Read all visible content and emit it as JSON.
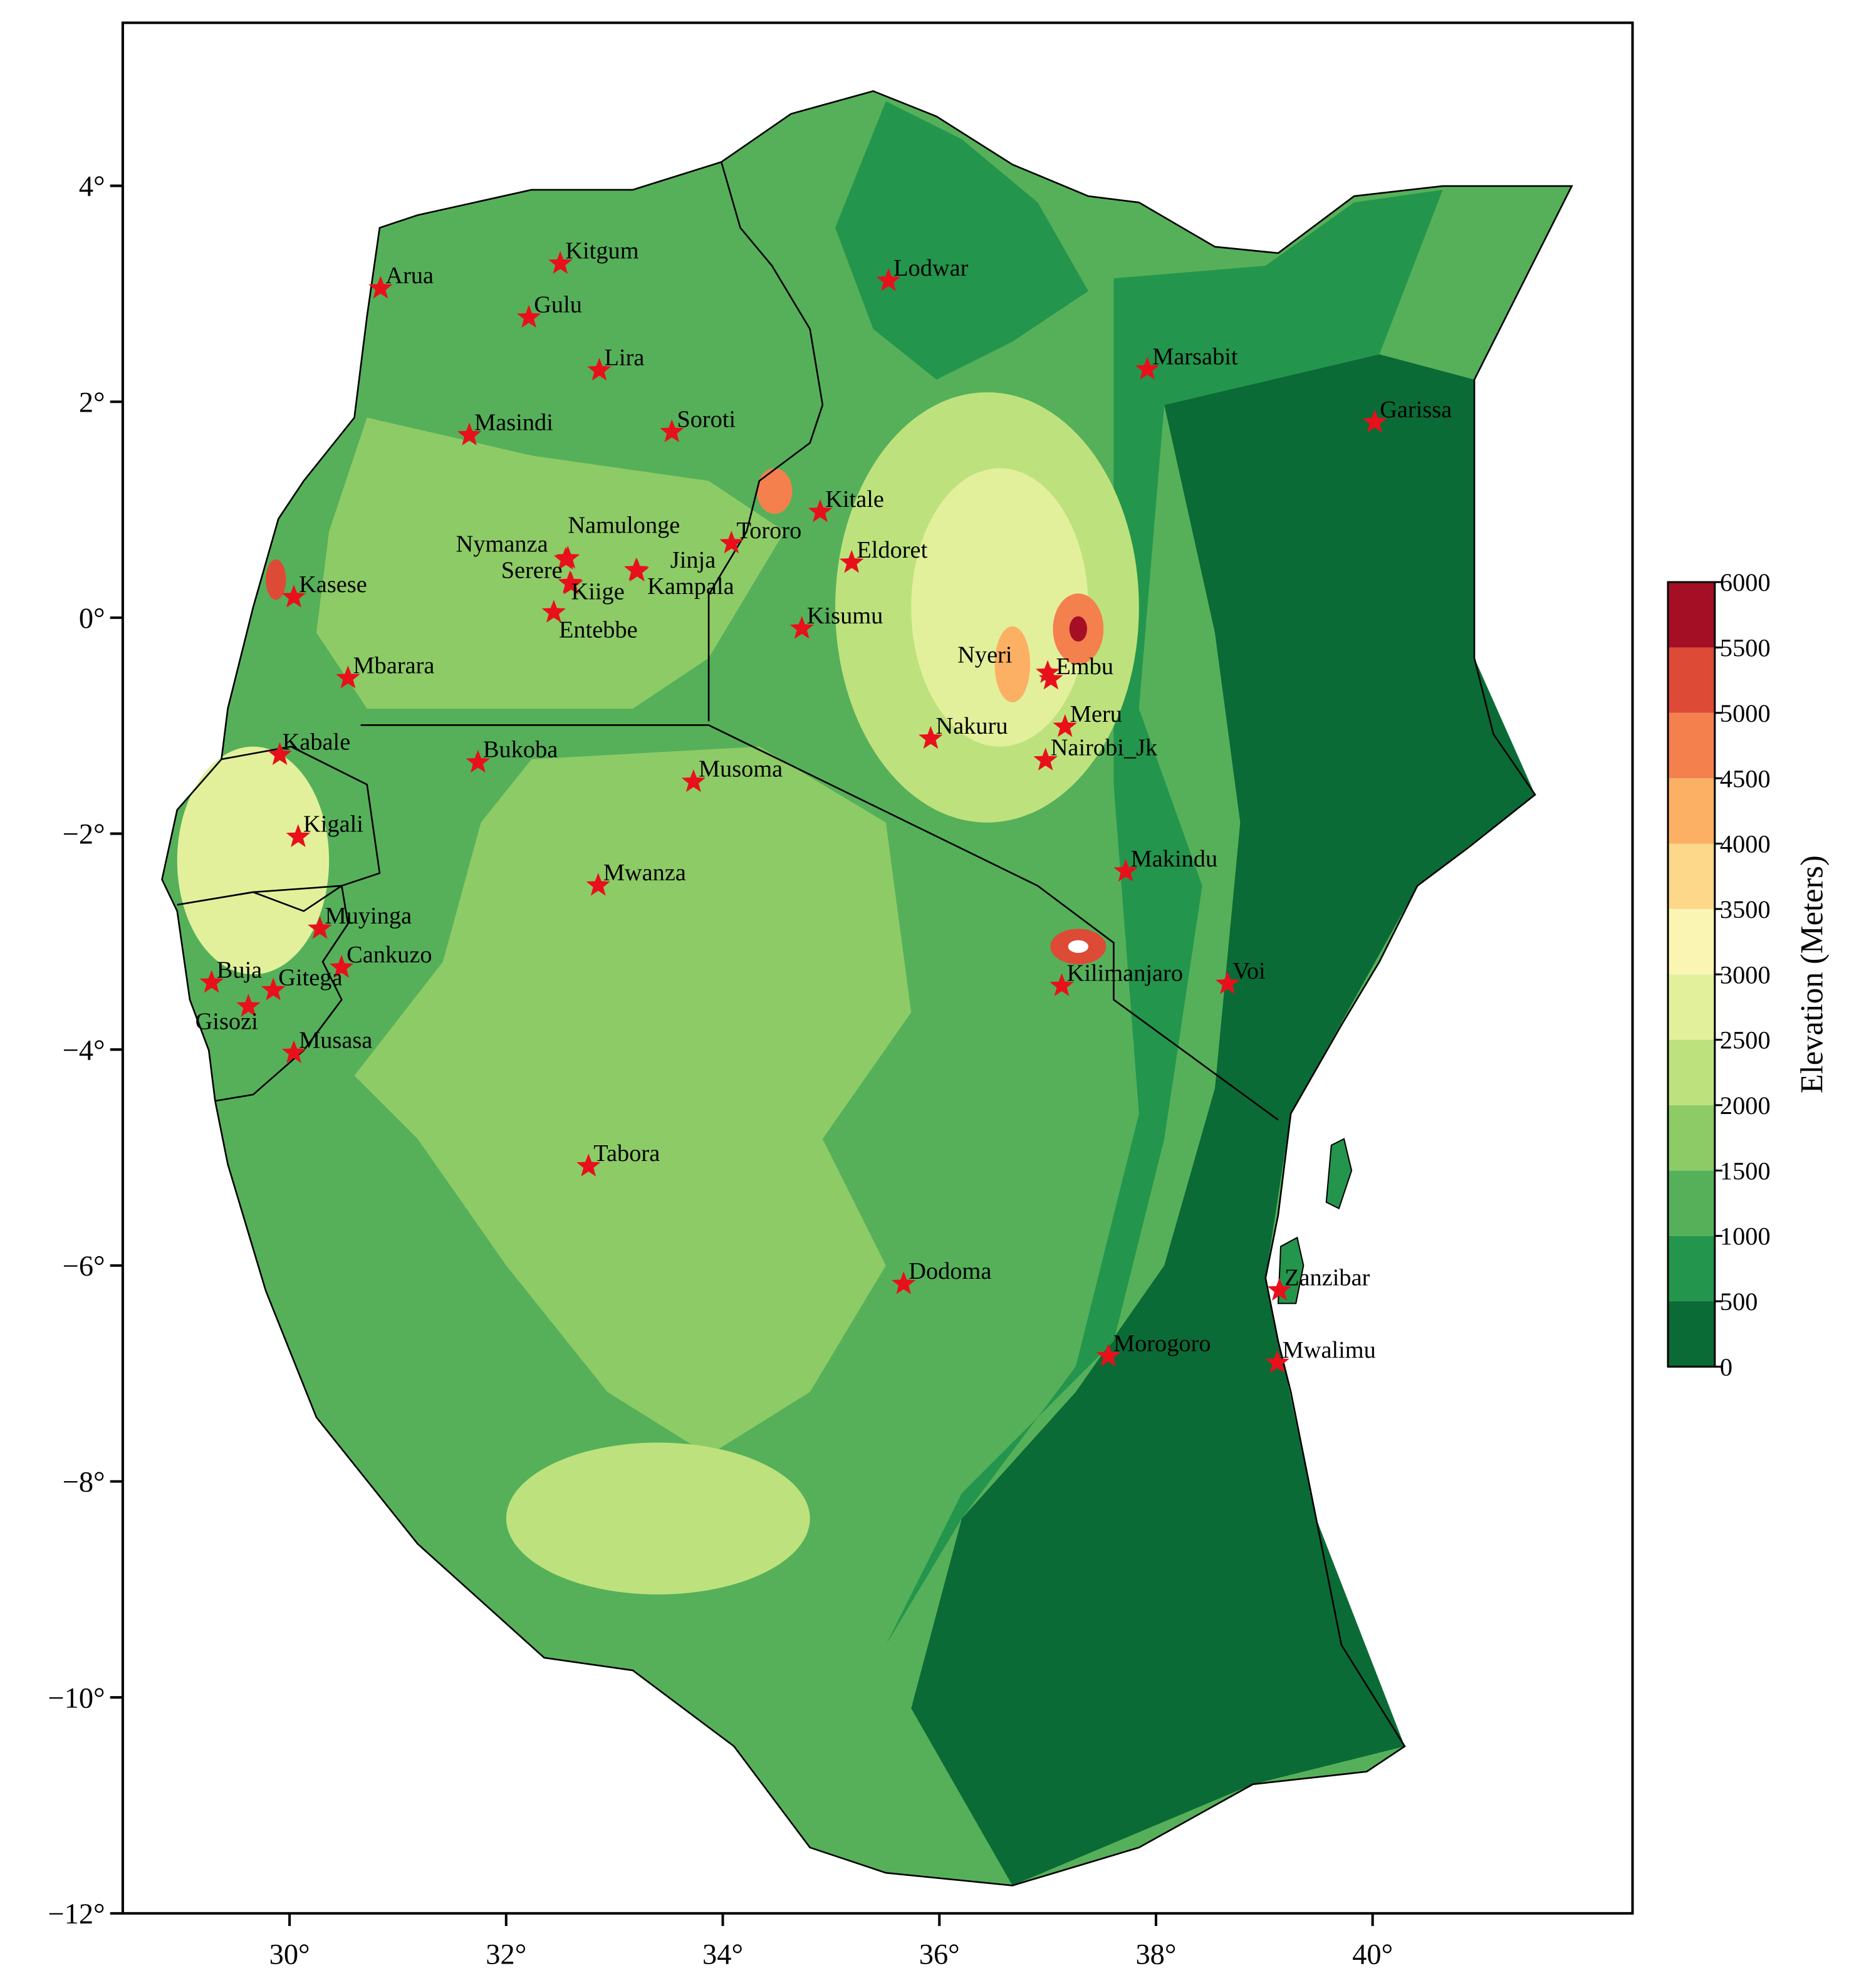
{
  "chart_data": {
    "type": "map",
    "xlim": [
      28.46,
      42.4
    ],
    "ylim": [
      -12,
      5.51
    ],
    "xticks": [
      {
        "value": 30,
        "label": "30°"
      },
      {
        "value": 32,
        "label": "32°"
      },
      {
        "value": 34,
        "label": "34°"
      },
      {
        "value": 36,
        "label": "36°"
      },
      {
        "value": 38,
        "label": "38°"
      },
      {
        "value": 40,
        "label": "40°"
      }
    ],
    "yticks": [
      {
        "value": 4,
        "label": "4°"
      },
      {
        "value": 2,
        "label": "2°"
      },
      {
        "value": 0,
        "label": "0°"
      },
      {
        "value": -2,
        "label": "−2°"
      },
      {
        "value": -4,
        "label": "−4°"
      },
      {
        "value": -6,
        "label": "−6°"
      },
      {
        "value": -8,
        "label": "−8°"
      },
      {
        "value": -10,
        "label": "−10°"
      },
      {
        "value": -12,
        "label": "−12°"
      }
    ],
    "marker_color": "#e8101a",
    "cities": [
      {
        "name": "Arua",
        "lon": 30.84,
        "lat": 3.05
      },
      {
        "name": "Kitgum",
        "lon": 32.5,
        "lat": 3.28
      },
      {
        "name": "Gulu",
        "lon": 32.21,
        "lat": 2.78
      },
      {
        "name": "Lira",
        "lon": 32.86,
        "lat": 2.29
      },
      {
        "name": "Lodwar",
        "lon": 35.53,
        "lat": 3.12
      },
      {
        "name": "Marsabit",
        "lon": 37.92,
        "lat": 2.3
      },
      {
        "name": "Garissa",
        "lon": 40.02,
        "lat": 1.81
      },
      {
        "name": "Masindi",
        "lon": 31.66,
        "lat": 1.69
      },
      {
        "name": "Soroti",
        "lon": 33.53,
        "lat": 1.72
      },
      {
        "name": "Kitale",
        "lon": 34.9,
        "lat": 0.98
      },
      {
        "name": "Tororo",
        "lon": 34.08,
        "lat": 0.69
      },
      {
        "name": "Namulonge",
        "lon": 32.57,
        "lat": 0.55
      },
      {
        "name": "Nymanza",
        "lon": 32.55,
        "lat": 0.54
      },
      {
        "name": "Serere",
        "lon": 32.59,
        "lat": 0.32
      },
      {
        "name": "Kiige",
        "lon": 32.6,
        "lat": 0.31
      },
      {
        "name": "Jinja",
        "lon": 33.2,
        "lat": 0.44
      },
      {
        "name": "Kampala",
        "lon": 33.21,
        "lat": 0.43
      },
      {
        "name": "Entebbe",
        "lon": 32.44,
        "lat": 0.05
      },
      {
        "name": "Eldoret",
        "lon": 35.19,
        "lat": 0.51
      },
      {
        "name": "Kasese",
        "lon": 30.04,
        "lat": 0.19
      },
      {
        "name": "Kisumu",
        "lon": 34.73,
        "lat": -0.1
      },
      {
        "name": "Mbarara",
        "lon": 30.54,
        "lat": -0.56
      },
      {
        "name": "Nyeri",
        "lon": 37.0,
        "lat": -0.51
      },
      {
        "name": "Embu",
        "lon": 37.03,
        "lat": -0.57
      },
      {
        "name": "Meru",
        "lon": 37.16,
        "lat": -1.01
      },
      {
        "name": "Nakuru",
        "lon": 35.92,
        "lat": -1.12
      },
      {
        "name": "Nairobi_Jk",
        "lon": 36.98,
        "lat": -1.32
      },
      {
        "name": "Kabale",
        "lon": 29.91,
        "lat": -1.27
      },
      {
        "name": "Bukoba",
        "lon": 31.74,
        "lat": -1.34
      },
      {
        "name": "Musoma",
        "lon": 33.73,
        "lat": -1.52
      },
      {
        "name": "Kigali",
        "lon": 30.08,
        "lat": -2.03
      },
      {
        "name": "Makindu",
        "lon": 37.72,
        "lat": -2.35
      },
      {
        "name": "Mwanza",
        "lon": 32.85,
        "lat": -2.48
      },
      {
        "name": "Muyinga",
        "lon": 30.28,
        "lat": -2.88
      },
      {
        "name": "Cankuzo",
        "lon": 30.48,
        "lat": -3.24
      },
      {
        "name": "Buja",
        "lon": 29.28,
        "lat": -3.38
      },
      {
        "name": "Gitega",
        "lon": 29.85,
        "lat": -3.45
      },
      {
        "name": "Gisozi",
        "lon": 29.62,
        "lat": -3.6
      },
      {
        "name": "Kilimanjaro",
        "lon": 37.13,
        "lat": -3.41
      },
      {
        "name": "Voi",
        "lon": 38.66,
        "lat": -3.39
      },
      {
        "name": "Musasa",
        "lon": 30.04,
        "lat": -4.03
      },
      {
        "name": "Tabora",
        "lon": 32.76,
        "lat": -5.08
      },
      {
        "name": "Dodoma",
        "lon": 35.67,
        "lat": -6.17
      },
      {
        "name": "Zanzibar",
        "lon": 39.14,
        "lat": -6.23
      },
      {
        "name": "Morogoro",
        "lon": 37.56,
        "lat": -6.84
      },
      {
        "name": "Mwalimu",
        "lon": 39.12,
        "lat": -6.9
      }
    ],
    "colorbar": {
      "label": "Elevation (Meters)",
      "lim": [
        0,
        6000
      ],
      "ticks": [
        0,
        500,
        1000,
        1500,
        2000,
        2500,
        3000,
        3500,
        4000,
        4500,
        5000,
        5500,
        6000
      ],
      "colors": [
        "#0b6b36",
        "#24954c",
        "#56b05a",
        "#8dcb67",
        "#bde27d",
        "#e2f09c",
        "#fbf5b4",
        "#fdd78a",
        "#fcb063",
        "#f4804e",
        "#dd4a35",
        "#a50f26"
      ]
    }
  }
}
